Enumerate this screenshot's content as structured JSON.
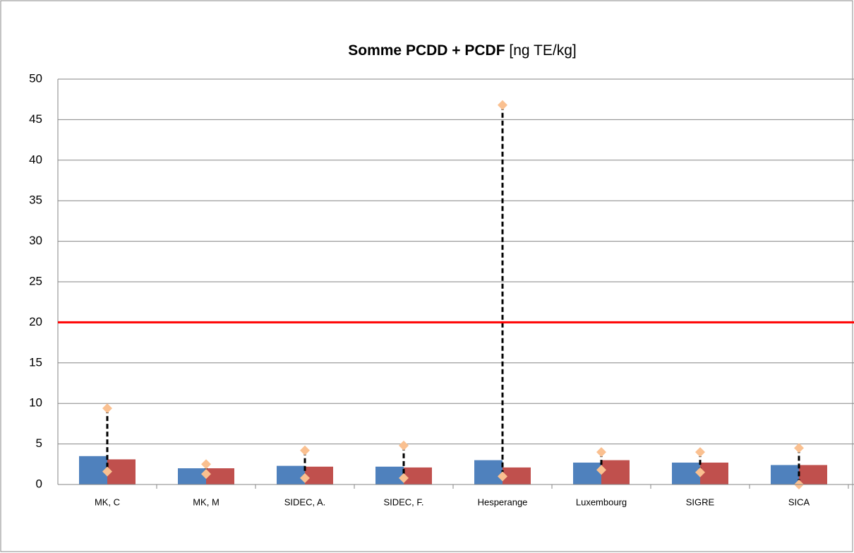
{
  "chart_data": {
    "type": "bar",
    "title": "Somme PCDD + PCDF",
    "title_unit": "[ng TE/kg]",
    "categories": [
      "MK, C",
      "MK, M",
      "SIDEC, A.",
      "SIDEC, F.",
      "Hesperange",
      "Luxembourg",
      "SIGRE",
      "SICA"
    ],
    "series": [
      {
        "color": "#4f81bd",
        "values": [
          3.5,
          2.0,
          2.3,
          2.2,
          3.0,
          2.7,
          2.7,
          2.4
        ]
      },
      {
        "color": "#c0504d",
        "values": [
          3.1,
          2.0,
          2.2,
          2.1,
          2.1,
          3.0,
          2.7,
          2.4
        ]
      }
    ],
    "ranges": {
      "color": "#fac090",
      "line_color": "#000000",
      "high": [
        9.4,
        2.5,
        4.2,
        4.8,
        46.8,
        4.0,
        4.0,
        4.5
      ],
      "low": [
        1.6,
        1.3,
        0.8,
        0.8,
        1.0,
        1.8,
        1.5,
        0.0
      ]
    },
    "hlines": [
      {
        "value": 20,
        "color": "#ff0000"
      }
    ],
    "ylim": [
      0,
      50
    ],
    "yticks": [
      0,
      5,
      10,
      15,
      20,
      25,
      30,
      35,
      40,
      45,
      50
    ],
    "grid": true
  }
}
